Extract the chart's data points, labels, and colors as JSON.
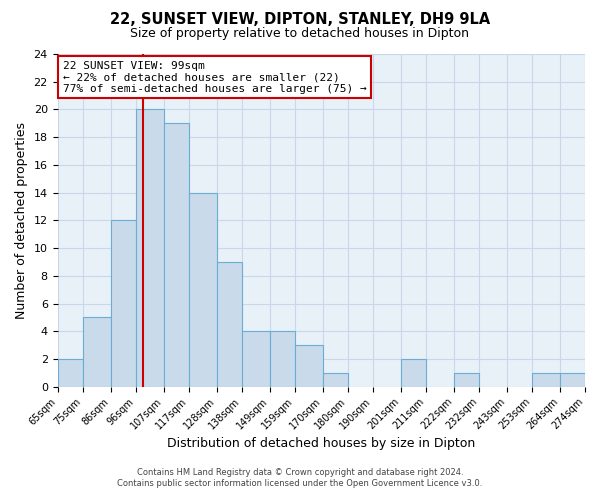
{
  "title": "22, SUNSET VIEW, DIPTON, STANLEY, DH9 9LA",
  "subtitle": "Size of property relative to detached houses in Dipton",
  "xlabel": "Distribution of detached houses by size in Dipton",
  "ylabel": "Number of detached properties",
  "bar_left_edges": [
    65,
    75,
    86,
    96,
    107,
    117,
    128,
    138,
    149,
    159,
    170,
    180,
    190,
    201,
    211,
    222,
    232,
    243,
    253,
    264
  ],
  "bar_heights": [
    2,
    5,
    12,
    20,
    19,
    14,
    9,
    4,
    4,
    3,
    1,
    0,
    0,
    2,
    0,
    1,
    0,
    0,
    1,
    1
  ],
  "bar_widths": [
    10,
    11,
    10,
    11,
    10,
    11,
    10,
    11,
    10,
    11,
    10,
    10,
    11,
    10,
    11,
    10,
    11,
    10,
    11,
    10
  ],
  "tick_labels": [
    "65sqm",
    "75sqm",
    "86sqm",
    "96sqm",
    "107sqm",
    "117sqm",
    "128sqm",
    "138sqm",
    "149sqm",
    "159sqm",
    "170sqm",
    "180sqm",
    "190sqm",
    "201sqm",
    "211sqm",
    "222sqm",
    "232sqm",
    "243sqm",
    "253sqm",
    "264sqm",
    "274sqm"
  ],
  "ylim": [
    0,
    24
  ],
  "yticks": [
    0,
    2,
    4,
    6,
    8,
    10,
    12,
    14,
    16,
    18,
    20,
    22,
    24
  ],
  "bar_color": "#c9daea",
  "bar_edge_color": "#6aaed6",
  "property_line_x": 99,
  "property_line_color": "#cc0000",
  "annotation_title": "22 SUNSET VIEW: 99sqm",
  "annotation_line1": "← 22% of detached houses are smaller (22)",
  "annotation_line2": "77% of semi-detached houses are larger (75) →",
  "annotation_box_color": "#ffffff",
  "annotation_box_edge_color": "#cc0000",
  "footer_line1": "Contains HM Land Registry data © Crown copyright and database right 2024.",
  "footer_line2": "Contains public sector information licensed under the Open Government Licence v3.0.",
  "background_color": "#ffffff",
  "plot_bg_color": "#e8f0f8",
  "grid_color": "#c8d8e8"
}
